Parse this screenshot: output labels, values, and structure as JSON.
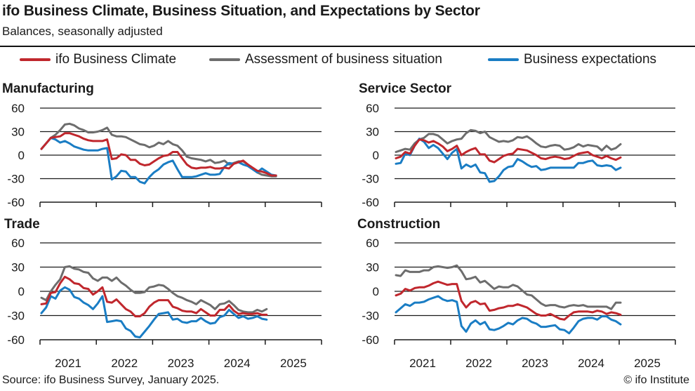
{
  "header": {
    "title": "ifo Business Climate, Business Situation, and Expectations by Sector",
    "subtitle": "Balances, seasonally adjusted"
  },
  "legend": [
    {
      "label": "ifo Business Climate",
      "color": "#c0272d"
    },
    {
      "label": "Assessment of business situation",
      "color": "#6d6d6d"
    },
    {
      "label": "Business expectations",
      "color": "#1a7dc4"
    }
  ],
  "footer": {
    "source": "Source: ifo Business Survey, January 2025.",
    "copyright": "© ifo Institute"
  },
  "chart_data": [
    {
      "type": "line",
      "title": "Manufacturing",
      "x_start": "2021-01",
      "x_end": "2025-01",
      "frequency": "monthly",
      "xticks": [
        "2021",
        "2022",
        "2023",
        "2024",
        "2025"
      ],
      "yticks": [
        "60",
        "30",
        "0",
        "-30",
        "-60"
      ],
      "ylim": [
        -60,
        60
      ],
      "grid": true,
      "series": [
        {
          "name": "ifo Business Climate",
          "values": [
            8,
            15,
            22,
            23,
            24,
            28,
            28,
            26,
            24,
            21,
            19,
            18,
            18,
            18,
            20,
            -5,
            -4,
            1,
            0,
            -6,
            -6,
            -11,
            -13,
            -12,
            -8,
            -4,
            -1,
            0,
            4,
            4,
            -4,
            -12,
            -16,
            -17,
            -16,
            -16,
            -15,
            -17,
            -17,
            -16,
            -17,
            -11,
            -9,
            -7,
            -12,
            -16,
            -20,
            -21,
            -23,
            -26,
            -26
          ]
        },
        {
          "name": "Assessment of business situation",
          "values": [
            8,
            15,
            22,
            26,
            32,
            39,
            40,
            38,
            34,
            32,
            29,
            29,
            30,
            32,
            35,
            26,
            24,
            24,
            23,
            20,
            17,
            14,
            13,
            10,
            12,
            16,
            14,
            18,
            14,
            12,
            6,
            -2,
            -4,
            -5,
            -6,
            -8,
            -6,
            -10,
            -9,
            -7,
            -12,
            -10,
            -8,
            -8,
            -12,
            -17,
            -22,
            -25,
            -26,
            -27,
            -27
          ]
        },
        {
          "name": "Business expectations",
          "values": [
            8,
            15,
            22,
            20,
            16,
            18,
            15,
            11,
            9,
            7,
            6,
            6,
            6,
            8,
            9,
            -31,
            -27,
            -20,
            -21,
            -28,
            -28,
            -34,
            -36,
            -28,
            -22,
            -18,
            -12,
            -9,
            -7,
            -18,
            -28,
            -28,
            -28,
            -27,
            -25,
            -23,
            -25,
            -25,
            -24,
            -15,
            -10,
            -11,
            -9,
            -12,
            -14,
            -18,
            -22,
            -17,
            -21,
            -25,
            -26
          ]
        }
      ]
    },
    {
      "type": "line",
      "title": "Service Sector",
      "x_start": "2021-01",
      "x_end": "2025-01",
      "frequency": "monthly",
      "xticks": [
        "2021",
        "2022",
        "2023",
        "2024",
        "2025"
      ],
      "yticks": [
        "60",
        "30",
        "0",
        "-30",
        "-60"
      ],
      "ylim": [
        -60,
        60
      ],
      "grid": true,
      "series": [
        {
          "name": "ifo Business Climate",
          "values": [
            -4,
            -2,
            4,
            2,
            12,
            20,
            19,
            16,
            18,
            15,
            11,
            5,
            8,
            12,
            0,
            4,
            7,
            9,
            1,
            1,
            -7,
            -9,
            -5,
            -1,
            1,
            2,
            8,
            7,
            6,
            3,
            0,
            -4,
            -5,
            -3,
            -2,
            -3,
            -5,
            -4,
            -1,
            2,
            3,
            4,
            0,
            -2,
            -4,
            -1,
            -4,
            -6,
            -3
          ]
        },
        {
          "name": "Assessment of business situation",
          "values": [
            4,
            6,
            8,
            7,
            15,
            20,
            22,
            27,
            27,
            25,
            20,
            15,
            18,
            20,
            21,
            28,
            32,
            31,
            28,
            30,
            23,
            20,
            17,
            18,
            17,
            19,
            23,
            22,
            24,
            20,
            15,
            11,
            10,
            12,
            13,
            12,
            7,
            8,
            10,
            14,
            11,
            13,
            12,
            11,
            6,
            12,
            7,
            9,
            14
          ]
        },
        {
          "name": "Business expectations",
          "values": [
            -11,
            -10,
            2,
            0,
            12,
            21,
            17,
            9,
            13,
            9,
            2,
            -5,
            3,
            8,
            -17,
            -12,
            -15,
            -12,
            -22,
            -23,
            -34,
            -33,
            -27,
            -19,
            -15,
            -14,
            -5,
            -8,
            -12,
            -15,
            -14,
            -19,
            -18,
            -16,
            -16,
            -16,
            -16,
            -16,
            -16,
            -10,
            -10,
            -8,
            -7,
            -13,
            -14,
            -13,
            -14,
            -19,
            -16
          ]
        }
      ]
    },
    {
      "type": "line",
      "title": "Trade",
      "x_start": "2021-01",
      "x_end": "2025-01",
      "frequency": "monthly",
      "xticks": [
        "2021",
        "2022",
        "2023",
        "2024",
        "2025"
      ],
      "yticks": [
        "60",
        "30",
        "0",
        "-30",
        "-60"
      ],
      "ylim": [
        -60,
        60
      ],
      "grid": true,
      "series": [
        {
          "name": "ifo Business Climate",
          "values": [
            -16,
            -15,
            -2,
            -1,
            10,
            18,
            15,
            10,
            9,
            4,
            3,
            -4,
            0,
            5,
            -13,
            -14,
            -10,
            -16,
            -22,
            -25,
            -31,
            -31,
            -27,
            -19,
            -14,
            -11,
            -11,
            -11,
            -19,
            -21,
            -24,
            -25,
            -25,
            -27,
            -22,
            -26,
            -30,
            -30,
            -23,
            -23,
            -17,
            -24,
            -28,
            -27,
            -28,
            -28,
            -27,
            -29,
            -29
          ]
        },
        {
          "name": "Assessment of business situation",
          "values": [
            -8,
            -11,
            0,
            8,
            15,
            30,
            31,
            28,
            27,
            24,
            23,
            16,
            13,
            17,
            17,
            13,
            17,
            11,
            7,
            2,
            -2,
            -2,
            -1,
            5,
            6,
            8,
            7,
            3,
            -2,
            -6,
            -8,
            -11,
            -13,
            -16,
            -11,
            -14,
            -17,
            -22,
            -16,
            -15,
            -12,
            -17,
            -23,
            -25,
            -26,
            -26,
            -23,
            -25,
            -22
          ]
        },
        {
          "name": "Business expectations",
          "values": [
            -27,
            -20,
            -6,
            -9,
            1,
            5,
            2,
            -7,
            -9,
            -14,
            -17,
            -22,
            -15,
            -6,
            -38,
            -37,
            -36,
            -37,
            -46,
            -49,
            -56,
            -57,
            -50,
            -43,
            -35,
            -28,
            -27,
            -26,
            -35,
            -34,
            -38,
            -39,
            -37,
            -37,
            -33,
            -37,
            -40,
            -39,
            -32,
            -30,
            -23,
            -28,
            -33,
            -31,
            -34,
            -33,
            -31,
            -34,
            -35
          ]
        }
      ]
    },
    {
      "type": "line",
      "title": "Construction",
      "x_start": "2021-01",
      "x_end": "2025-01",
      "frequency": "monthly",
      "xticks": [
        "2021",
        "2022",
        "2023",
        "2024",
        "2025"
      ],
      "yticks": [
        "60",
        "30",
        "0",
        "-30",
        "-60"
      ],
      "ylim": [
        -60,
        60
      ],
      "grid": true,
      "series": [
        {
          "name": "ifo Business Climate",
          "values": [
            -5,
            -3,
            3,
            1,
            4,
            5,
            5,
            7,
            10,
            12,
            10,
            8,
            9,
            9,
            -12,
            -20,
            -14,
            -12,
            -16,
            -15,
            -24,
            -23,
            -21,
            -20,
            -18,
            -18,
            -16,
            -18,
            -20,
            -24,
            -28,
            -30,
            -30,
            -28,
            -31,
            -34,
            -35,
            -30,
            -26,
            -25,
            -25,
            -25,
            -26,
            -24,
            -25,
            -28,
            -26,
            -27,
            -29
          ]
        },
        {
          "name": "Assessment of business situation",
          "values": [
            20,
            19,
            26,
            24,
            24,
            24,
            26,
            26,
            30,
            31,
            30,
            29,
            30,
            32,
            25,
            15,
            16,
            18,
            11,
            13,
            8,
            3,
            6,
            5,
            5,
            8,
            6,
            1,
            -4,
            -5,
            -10,
            -15,
            -18,
            -17,
            -17,
            -19,
            -20,
            -18,
            -17,
            -18,
            -17,
            -19,
            -19,
            -19,
            -19,
            -19,
            -22,
            -14,
            -14
          ]
        },
        {
          "name": "Business expectations",
          "values": [
            -26,
            -21,
            -16,
            -18,
            -14,
            -14,
            -13,
            -10,
            -8,
            -6,
            -10,
            -12,
            -11,
            -13,
            -43,
            -50,
            -40,
            -36,
            -41,
            -38,
            -47,
            -48,
            -46,
            -43,
            -39,
            -41,
            -36,
            -33,
            -34,
            -38,
            -40,
            -44,
            -44,
            -43,
            -42,
            -47,
            -48,
            -52,
            -45,
            -37,
            -34,
            -33,
            -33,
            -35,
            -31,
            -31,
            -35,
            -37,
            -41
          ]
        }
      ]
    }
  ]
}
